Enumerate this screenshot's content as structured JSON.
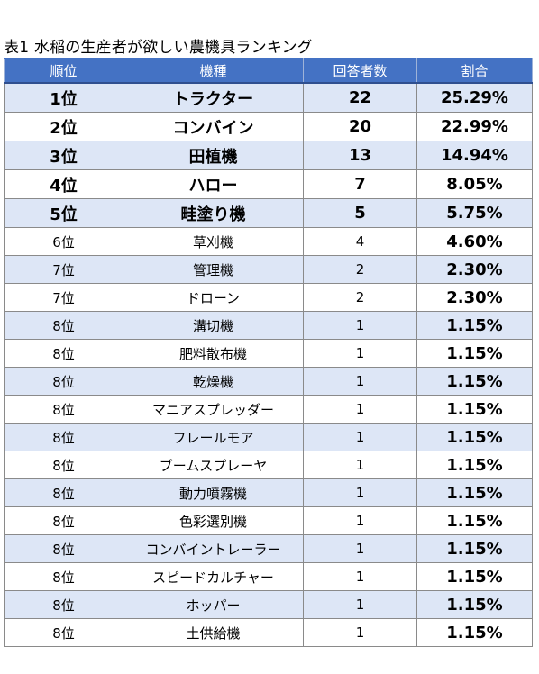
{
  "title": "表1 水稲の生産者が欲しい農機具ランキング",
  "table": {
    "headers": [
      "順位",
      "機種",
      "回答者数",
      "割合"
    ],
    "rows": [
      {
        "rank": "1位",
        "machine": "トラクター",
        "count": "22",
        "percent": "25.29%"
      },
      {
        "rank": "2位",
        "machine": "コンバイン",
        "count": "20",
        "percent": "22.99%"
      },
      {
        "rank": "3位",
        "machine": "田植機",
        "count": "13",
        "percent": "14.94%"
      },
      {
        "rank": "4位",
        "machine": "ハロー",
        "count": "7",
        "percent": "8.05%"
      },
      {
        "rank": "5位",
        "machine": "畦塗り機",
        "count": "5",
        "percent": "5.75%"
      },
      {
        "rank": "6位",
        "machine": "草刈機",
        "count": "4",
        "percent": "4.60%"
      },
      {
        "rank": "7位",
        "machine": "管理機",
        "count": "2",
        "percent": "2.30%"
      },
      {
        "rank": "7位",
        "machine": "ドローン",
        "count": "2",
        "percent": "2.30%"
      },
      {
        "rank": "8位",
        "machine": "溝切機",
        "count": "1",
        "percent": "1.15%"
      },
      {
        "rank": "8位",
        "machine": "肥料散布機",
        "count": "1",
        "percent": "1.15%"
      },
      {
        "rank": "8位",
        "machine": "乾燥機",
        "count": "1",
        "percent": "1.15%"
      },
      {
        "rank": "8位",
        "machine": "マニアスプレッダー",
        "count": "1",
        "percent": "1.15%"
      },
      {
        "rank": "8位",
        "machine": "フレールモア",
        "count": "1",
        "percent": "1.15%"
      },
      {
        "rank": "8位",
        "machine": "ブームスプレーヤ",
        "count": "1",
        "percent": "1.15%"
      },
      {
        "rank": "8位",
        "machine": "動力噴霧機",
        "count": "1",
        "percent": "1.15%"
      },
      {
        "rank": "8位",
        "machine": "色彩選別機",
        "count": "1",
        "percent": "1.15%"
      },
      {
        "rank": "8位",
        "machine": "コンバイントレーラー",
        "count": "1",
        "percent": "1.15%"
      },
      {
        "rank": "8位",
        "machine": "スピードカルチャー",
        "count": "1",
        "percent": "1.15%"
      },
      {
        "rank": "8位",
        "machine": "ホッパー",
        "count": "1",
        "percent": "1.15%"
      },
      {
        "rank": "8位",
        "machine": "土供給機",
        "count": "1",
        "percent": "1.15%"
      }
    ]
  },
  "colors": {
    "header_bg": "#4472c4",
    "header_text": "#ffffff",
    "shaded_row": "#dde6f6"
  }
}
